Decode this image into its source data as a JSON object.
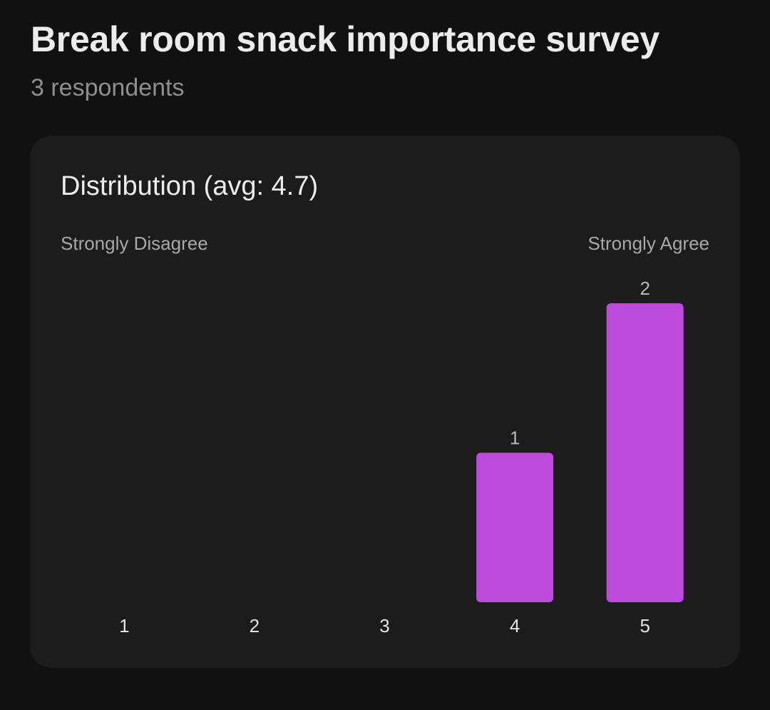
{
  "header": {
    "title": "Break room snack importance survey",
    "subtitle": "3 respondents"
  },
  "card": {
    "title": "Distribution (avg: 4.7)",
    "scale_min_label": "Strongly Disagree",
    "scale_max_label": "Strongly Agree"
  },
  "colors": {
    "background": "#111111",
    "card": "#1c1c1c",
    "bar": "#bd4bdb"
  },
  "chart_data": {
    "type": "bar",
    "categories": [
      "1",
      "2",
      "3",
      "4",
      "5"
    ],
    "values": [
      0,
      0,
      0,
      1,
      2
    ],
    "data_labels": [
      "",
      "",
      "",
      "1",
      "2"
    ],
    "ylim": [
      0,
      2
    ],
    "grid": false,
    "legend": "none"
  }
}
